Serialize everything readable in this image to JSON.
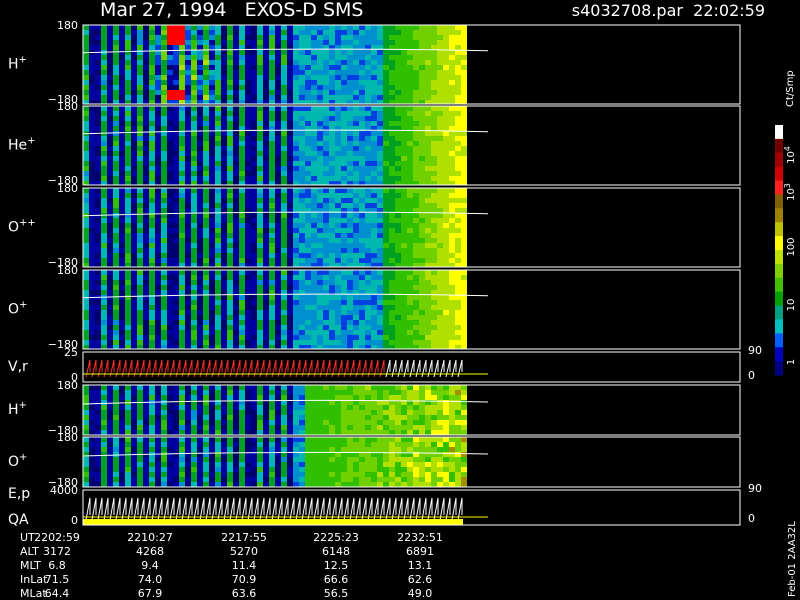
{
  "header": {
    "title": "Mar 27, 1994   EXOS-D SMS",
    "file": "s4032708.par  22:02:59"
  },
  "panels": [
    {
      "label": "H",
      "sup": "+",
      "top": "180",
      "bottom": "−180"
    },
    {
      "label": "He",
      "sup": "+",
      "top": "180",
      "bottom": "−180"
    },
    {
      "label": "O",
      "sup": "++",
      "top": "180",
      "bottom": "−180"
    },
    {
      "label": "O",
      "sup": "+",
      "top": "180",
      "bottom": "−180"
    },
    {
      "label": "V,r",
      "top": "25",
      "bottom": "0",
      "right_top": "90",
      "right_bottom": "0"
    },
    {
      "label": "H",
      "sup": "+",
      "top": "180",
      "bottom": "−180"
    },
    {
      "label": "O",
      "sup": "+",
      "top": "180",
      "bottom": "−180"
    },
    {
      "label": "E,p",
      "label2": "QA",
      "top": "4000",
      "bottom": "0",
      "right_top": "90",
      "right_bottom": "0"
    }
  ],
  "colorbar": {
    "title": "Ct/Smp",
    "ticks": [
      {
        "base": "10",
        "exp": "4"
      },
      {
        "base": "10",
        "exp": "3"
      },
      {
        "base": "100"
      },
      {
        "base": "10"
      },
      {
        "base": "1"
      }
    ]
  },
  "footer": {
    "rows": [
      [
        "UT",
        "2202:59",
        "2210:27",
        "2217:55",
        "2225:23",
        "2232:51"
      ],
      [
        "ALT",
        "3172",
        "4268",
        "5270",
        "6148",
        "6891"
      ],
      [
        "MLT",
        "6.8",
        "9.4",
        "11.4",
        "12.5",
        "13.1"
      ],
      [
        "InLat",
        "71.5",
        "74.0",
        "70.9",
        "66.6",
        "62.6"
      ],
      [
        "MLat",
        "64.4",
        "67.9",
        "63.6",
        "56.5",
        "49.0"
      ]
    ]
  },
  "side_note": "Feb-01 2AA32L"
}
